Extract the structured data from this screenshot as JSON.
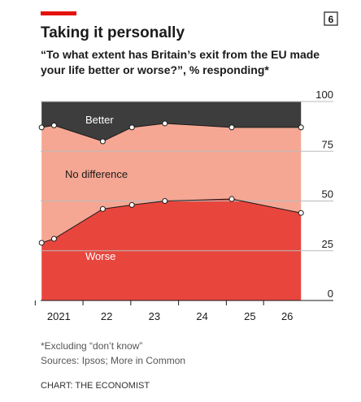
{
  "chart_data": {
    "type": "stacked_area",
    "page_number": "6",
    "title": "Taking it personally",
    "subtitle": "“To what extent has Britain’s exit from the EU made your life better or worse?”, % responding*",
    "x": [
      2021.14,
      2021.4,
      2022.42,
      2023.03,
      2023.72,
      2025.12,
      2026.57
    ],
    "series": [
      {
        "name": "Worse",
        "color": "#e8463d",
        "values": [
          29,
          31,
          46,
          48,
          50,
          51,
          44
        ]
      },
      {
        "name": "No difference",
        "color": "#f5a794",
        "values": [
          58,
          57,
          34,
          39,
          39,
          36,
          43
        ]
      },
      {
        "name": "Better",
        "color": "#3d3d3d",
        "values": [
          13,
          12,
          20,
          13,
          11,
          13,
          13
        ]
      }
    ],
    "xlim": [
      2021.12,
      2026.6
    ],
    "xticks": [
      {
        "value": 2021.5,
        "label": "2021"
      },
      {
        "value": 2022.5,
        "label": "22"
      },
      {
        "value": 2023.5,
        "label": "23"
      },
      {
        "value": 2024.5,
        "label": "24"
      },
      {
        "value": 2025.5,
        "label": "25"
      },
      {
        "value": 2026.28,
        "label": "26"
      }
    ],
    "ylim": [
      0,
      100
    ],
    "yticks": [
      0,
      25,
      50,
      75,
      100
    ],
    "grid": true,
    "footnote": "*Excluding “don’t know”",
    "source": "Sources: Ipsos; More in Common",
    "credit": "CHART: THE ECONOMIST"
  }
}
